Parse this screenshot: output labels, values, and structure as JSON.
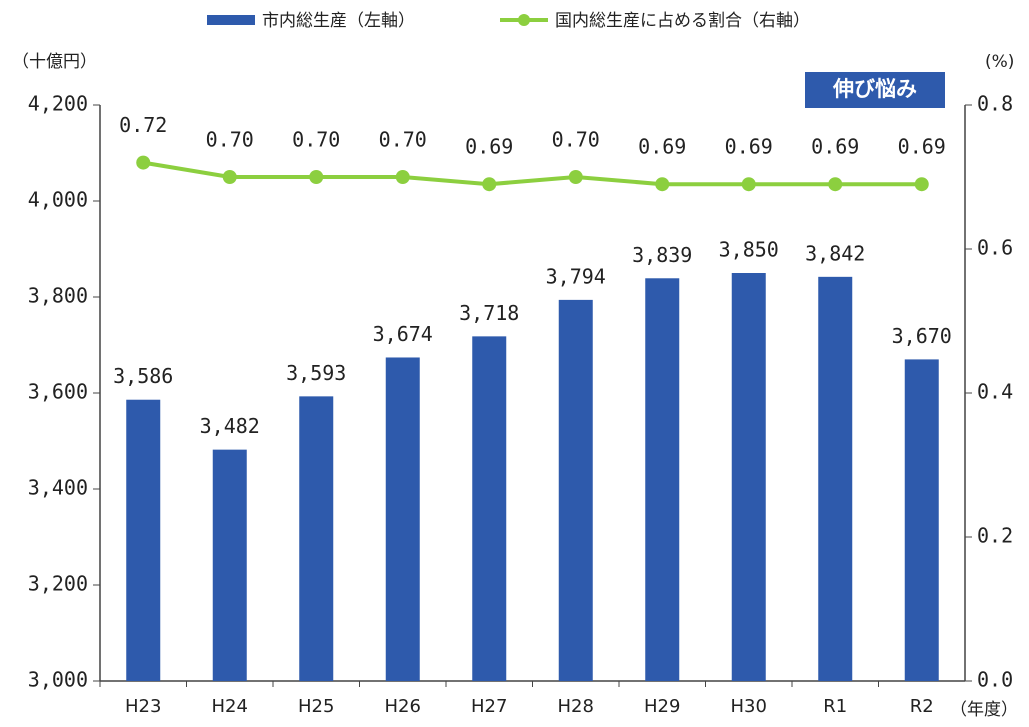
{
  "chart_data": {
    "type": "bar_line",
    "categories": [
      "H23",
      "H24",
      "H25",
      "H26",
      "H27",
      "H28",
      "H29",
      "H30",
      "R1",
      "R2"
    ],
    "series": [
      {
        "name": "市内総生産（左軸）",
        "type": "bar",
        "color": "#2e5aac",
        "values": [
          3586,
          3482,
          3593,
          3674,
          3718,
          3794,
          3839,
          3850,
          3842,
          3670
        ],
        "value_labels": [
          "3,586",
          "3,482",
          "3,593",
          "3,674",
          "3,718",
          "3,794",
          "3,839",
          "3,850",
          "3,842",
          "3,670"
        ]
      },
      {
        "name": "国内総生産に占める割合（右軸）",
        "type": "line",
        "axis": "y2",
        "color": "#8ccf3f",
        "values": [
          0.72,
          0.7,
          0.7,
          0.7,
          0.69,
          0.7,
          0.69,
          0.69,
          0.69,
          0.69
        ],
        "value_labels": [
          "0.72",
          "0.70",
          "0.70",
          "0.70",
          "0.69",
          "0.70",
          "0.69",
          "0.69",
          "0.69",
          "0.69"
        ]
      }
    ],
    "ylabel": "（十億円）",
    "y2label": "(%)",
    "xlabel": "（年度）",
    "annotation": "伸び悩み",
    "ylim": [
      3000,
      4200
    ],
    "yticks": [
      {
        "value": 3000,
        "label": "3,000"
      },
      {
        "value": 3200,
        "label": "3,200"
      },
      {
        "value": 3400,
        "label": "3,400"
      },
      {
        "value": 3600,
        "label": "3,600"
      },
      {
        "value": 3800,
        "label": "3,800"
      },
      {
        "value": 4000,
        "label": "4,000"
      },
      {
        "value": 4200,
        "label": "4,200"
      }
    ],
    "y2lim": [
      0,
      0.8
    ],
    "y2ticks": [
      {
        "value": 0,
        "label": "0.0"
      },
      0.2,
      0.4,
      0.6,
      0.8
    ]
  }
}
